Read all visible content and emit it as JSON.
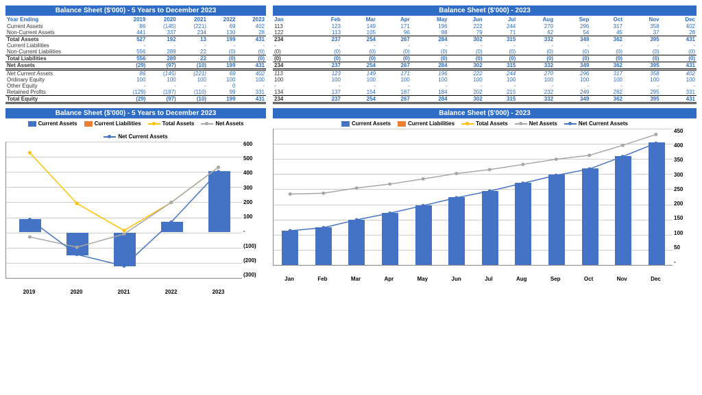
{
  "colors": {
    "primary": "#2e6cc5",
    "bar": "#4472c4",
    "orange": "#ed7d31",
    "yellow": "#ffc000",
    "gray": "#a6a6a6",
    "grid": "#cccccc"
  },
  "table5y": {
    "title": "Balance Sheet ($'000) - 5 Years to December 2023",
    "header_label": "Year Ending",
    "years": [
      "2019",
      "2020",
      "2021",
      "2022",
      "2023"
    ],
    "rows": [
      {
        "label": "Current Assets",
        "v": [
          "86",
          "(145)",
          "(221)",
          "69",
          "402"
        ]
      },
      {
        "label": "Non-Current Assets",
        "v": [
          "441",
          "337",
          "234",
          "130",
          "28"
        ]
      },
      {
        "label": "Total Assets",
        "v": [
          "527",
          "192",
          "13",
          "199",
          "431"
        ],
        "bold": true,
        "bt": true
      },
      {
        "label": "Current Liabilities",
        "v": [
          "-",
          "-",
          "-",
          "-",
          "-"
        ]
      },
      {
        "label": "Non-Current Liabilities",
        "v": [
          "556",
          "289",
          "22",
          "(0)",
          "(0)"
        ]
      },
      {
        "label": "Total Liabilities",
        "v": [
          "556",
          "289",
          "22",
          "(0)",
          "(0)"
        ],
        "bold": true,
        "bt": true
      },
      {
        "label": "Net Assets",
        "v": [
          "(29)",
          "(97)",
          "(10)",
          "199",
          "431"
        ],
        "bold": true,
        "bt": true,
        "db": true
      },
      {
        "label": "Net Current Assets",
        "v": [
          "86",
          "(145)",
          "(221)",
          "69",
          "402"
        ],
        "italic": true
      },
      {
        "label": "Ordinary Equity",
        "v": [
          "100",
          "100",
          "100",
          "100",
          "100"
        ]
      },
      {
        "label": "Other Equity",
        "v": [
          "-",
          "-",
          "-",
          "0",
          "-"
        ]
      },
      {
        "label": "Retained Profits",
        "v": [
          "(129)",
          "(197)",
          "(110)",
          "99",
          "331"
        ]
      },
      {
        "label": "Total Equity",
        "v": [
          "(29)",
          "(97)",
          "(10)",
          "199",
          "431"
        ],
        "bold": true,
        "bt": true,
        "db": true
      }
    ]
  },
  "table2023": {
    "title": "Balance Sheet ($'000) - 2023",
    "months": [
      "Jan",
      "Feb",
      "Mar",
      "Apr",
      "May",
      "Jun",
      "Jul",
      "Aug",
      "Sep",
      "Oct",
      "Nov",
      "Dec"
    ],
    "rows": [
      {
        "v": [
          "113",
          "123",
          "149",
          "171",
          "196",
          "222",
          "244",
          "270",
          "296",
          "317",
          "358",
          "402"
        ]
      },
      {
        "v": [
          "122",
          "113",
          "105",
          "96",
          "88",
          "79",
          "71",
          "62",
          "54",
          "45",
          "37",
          "28"
        ]
      },
      {
        "v": [
          "234",
          "237",
          "254",
          "267",
          "284",
          "302",
          "315",
          "332",
          "349",
          "362",
          "395",
          "431"
        ],
        "bold": true,
        "bt": true
      },
      {
        "v": [
          "-",
          "-",
          "-",
          "-",
          "-",
          "-",
          "-",
          "-",
          "-",
          "-",
          "-",
          "-"
        ]
      },
      {
        "v": [
          "(0)",
          "(0)",
          "(0)",
          "(0)",
          "(0)",
          "(0)",
          "(0)",
          "(0)",
          "(0)",
          "(0)",
          "(0)",
          "(0)"
        ]
      },
      {
        "v": [
          "(0)",
          "(0)",
          "(0)",
          "(0)",
          "(0)",
          "(0)",
          "(0)",
          "(0)",
          "(0)",
          "(0)",
          "(0)",
          "(0)"
        ],
        "bold": true,
        "bt": true
      },
      {
        "v": [
          "234",
          "237",
          "254",
          "267",
          "284",
          "302",
          "315",
          "332",
          "349",
          "362",
          "395",
          "431"
        ],
        "bold": true,
        "bt": true,
        "db": true
      },
      {
        "v": [
          "113",
          "123",
          "149",
          "171",
          "196",
          "222",
          "244",
          "270",
          "296",
          "317",
          "358",
          "402"
        ],
        "italic": true
      },
      {
        "v": [
          "100",
          "100",
          "100",
          "100",
          "100",
          "100",
          "100",
          "100",
          "100",
          "100",
          "100",
          "100"
        ]
      },
      {
        "v": [
          "-",
          "-",
          "-",
          "-",
          "-",
          "-",
          "-",
          "-",
          "-",
          "-",
          "-",
          "-"
        ]
      },
      {
        "v": [
          "134",
          "137",
          "154",
          "167",
          "184",
          "202",
          "215",
          "232",
          "249",
          "262",
          "295",
          "331"
        ]
      },
      {
        "v": [
          "234",
          "237",
          "254",
          "267",
          "284",
          "302",
          "315",
          "332",
          "349",
          "362",
          "395",
          "431"
        ],
        "bold": true,
        "bt": true,
        "db": true
      }
    ]
  },
  "chart5y": {
    "title": "Balance Sheet ($'000) - 5 Years to December 2023",
    "legend": [
      {
        "label": "Current Assets",
        "type": "box",
        "color": "#4472c4"
      },
      {
        "label": "Current Liabilities",
        "type": "box",
        "color": "#ed7d31"
      },
      {
        "label": "Total Assets",
        "type": "line",
        "color": "#ffc000"
      },
      {
        "label": "Net Assets",
        "type": "line",
        "color": "#a6a6a6"
      },
      {
        "label": "Net Current Assets",
        "type": "line",
        "color": "#4472c4"
      }
    ],
    "x": [
      "2019",
      "2020",
      "2021",
      "2022",
      "2023"
    ],
    "ylabels": [
      "600",
      "500",
      "400",
      "300",
      "200",
      "100",
      "-",
      "(100)",
      "(200)",
      "(300)"
    ],
    "ymin": -300,
    "ymax": 600,
    "bars": [
      86,
      -145,
      -221,
      69,
      402
    ],
    "total_assets": [
      527,
      192,
      13,
      199,
      431
    ],
    "net_assets": [
      -29,
      -97,
      -10,
      199,
      431
    ],
    "net_current": [
      86,
      -145,
      -221,
      69,
      402
    ]
  },
  "chart2023": {
    "title": "Balance Sheet ($'000) - 2023",
    "legend": [
      {
        "label": "Current Assets",
        "type": "box",
        "color": "#4472c4"
      },
      {
        "label": "Current Liabilities",
        "type": "box",
        "color": "#ed7d31"
      },
      {
        "label": "Total Assets",
        "type": "line",
        "color": "#ffc000"
      },
      {
        "label": "Net Assets",
        "type": "line",
        "color": "#a6a6a6"
      },
      {
        "label": "Net Current Assets",
        "type": "line",
        "color": "#4472c4"
      }
    ],
    "x": [
      "Jan",
      "Feb",
      "Mar",
      "Apr",
      "May",
      "Jun",
      "Jul",
      "Aug",
      "Sep",
      "Oct",
      "Nov",
      "Dec"
    ],
    "ylabels": [
      "450",
      "400",
      "350",
      "300",
      "250",
      "200",
      "150",
      "100",
      "50",
      "-"
    ],
    "ymin": 0,
    "ymax": 450,
    "bars": [
      113,
      123,
      149,
      171,
      196,
      222,
      244,
      270,
      296,
      317,
      358,
      402
    ],
    "net_assets": [
      234,
      237,
      254,
      267,
      284,
      302,
      315,
      332,
      349,
      362,
      395,
      431
    ],
    "net_current": [
      113,
      123,
      149,
      171,
      196,
      222,
      244,
      270,
      296,
      317,
      358,
      402
    ]
  }
}
